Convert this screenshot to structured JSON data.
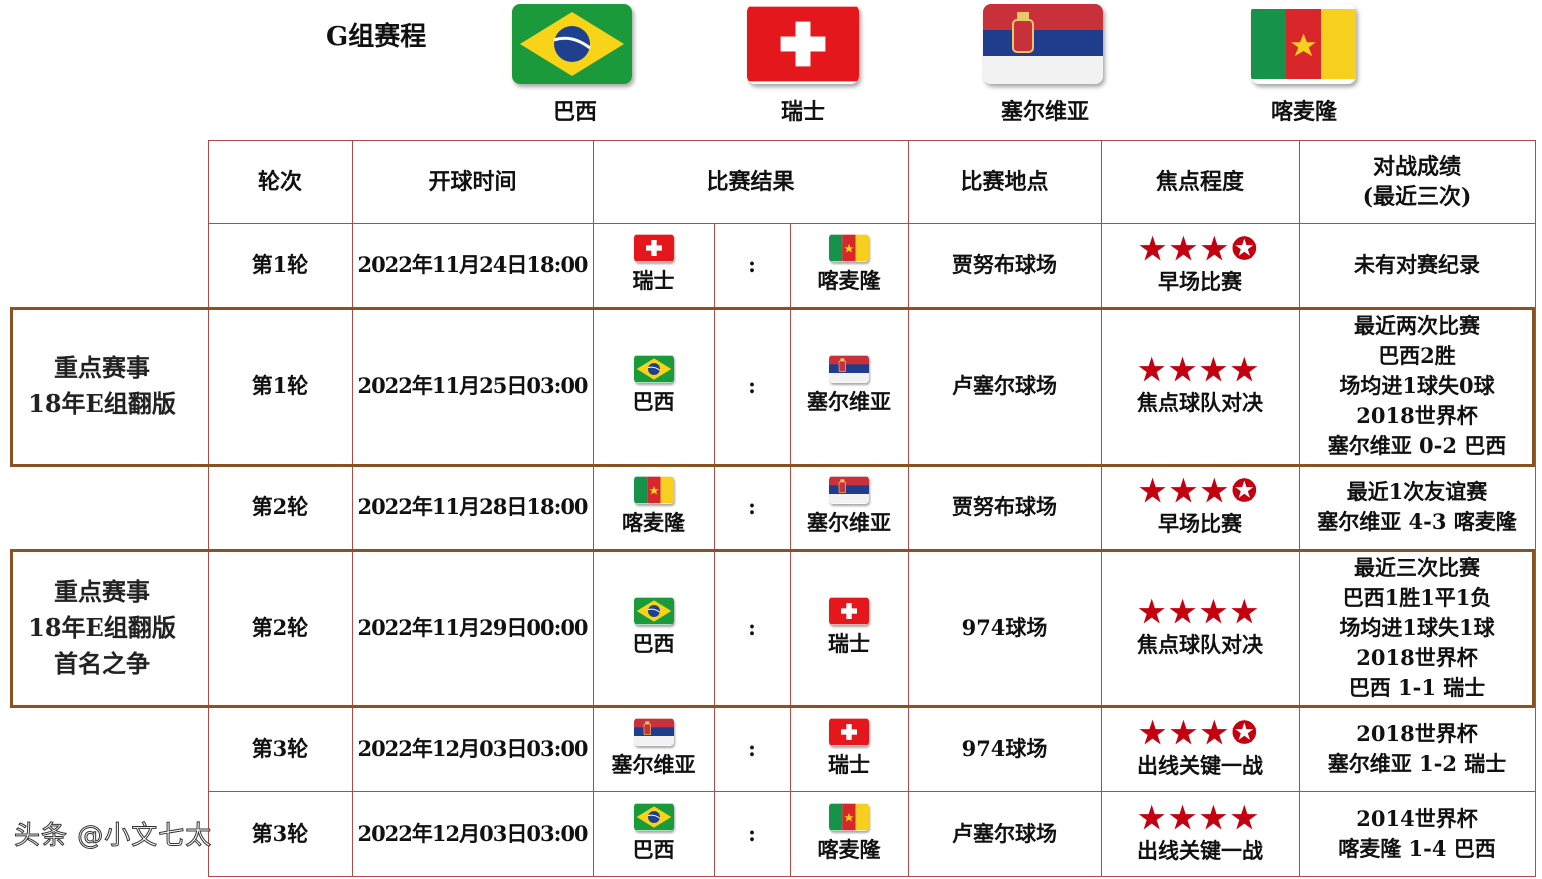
{
  "title": "G组赛程",
  "teams": [
    {
      "name": "巴西",
      "flag": "brazil-flag"
    },
    {
      "name": "瑞士",
      "flag": "switzerland-flag"
    },
    {
      "name": "塞尔维亚",
      "flag": "serbia-flag"
    },
    {
      "name": "喀麦隆",
      "flag": "cameroon-flag"
    }
  ],
  "headers": [
    "轮次",
    "开球时间",
    "比赛结果",
    "比赛地点",
    "焦点程度",
    "对战成绩\n(最近三次)"
  ],
  "colon": ":",
  "rows": [
    {
      "round": "第1轮",
      "time": "2022年11月24日18:00",
      "home": "瑞士",
      "home_flag": "switzerland-flag",
      "away": "喀麦隆",
      "away_flag": "cameroon-flag",
      "venue": "贾努布球场",
      "stars": 3.5,
      "focus": "早场比赛",
      "record": [
        "未有对赛纪录"
      ]
    },
    {
      "round": "第1轮",
      "time": "2022年11月25日03:00",
      "home": "巴西",
      "home_flag": "brazil-flag",
      "away": "塞尔维亚",
      "away_flag": "serbia-flag",
      "venue": "卢塞尔球场",
      "stars": 4,
      "focus": "焦点球队对决",
      "record": [
        "最近两次比赛",
        "巴西2胜",
        "场均进1球失0球",
        "2018世界杯",
        "塞尔维亚 0-2 巴西"
      ]
    },
    {
      "round": "第2轮",
      "time": "2022年11月28日18:00",
      "home": "喀麦隆",
      "home_flag": "cameroon-flag",
      "away": "塞尔维亚",
      "away_flag": "serbia-flag",
      "venue": "贾努布球场",
      "stars": 3.5,
      "focus": "早场比赛",
      "record": [
        "最近1次友谊赛",
        "塞尔维亚 4-3 喀麦隆"
      ]
    },
    {
      "round": "第2轮",
      "time": "2022年11月29日00:00",
      "home": "巴西",
      "home_flag": "brazil-flag",
      "away": "瑞士",
      "away_flag": "switzerland-flag",
      "venue": "974球场",
      "stars": 4,
      "focus": "焦点球队对决",
      "record": [
        "最近三次比赛",
        "巴西1胜1平1负",
        "场均进1球失1球",
        "2018世界杯",
        "巴西 1-1 瑞士"
      ]
    },
    {
      "round": "第3轮",
      "time": "2022年12月03日03:00",
      "home": "塞尔维亚",
      "home_flag": "serbia-flag",
      "away": "瑞士",
      "away_flag": "switzerland-flag",
      "venue": "974球场",
      "stars": 3.5,
      "focus": "出线关键一战",
      "record": [
        "2018世界杯",
        "塞尔维亚 1-2 瑞士"
      ]
    },
    {
      "round": "第3轮",
      "time": "2022年12月03日03:00",
      "home": "巴西",
      "home_flag": "brazil-flag",
      "away": "喀麦隆",
      "away_flag": "cameroon-flag",
      "venue": "卢塞尔球场",
      "stars": 4,
      "focus": "出线关键一战",
      "record": [
        "2014世界杯",
        "喀麦隆 1-4 巴西"
      ]
    }
  ],
  "highlights": [
    {
      "row": 1,
      "label": [
        "重点赛事",
        "18年E组翻版"
      ]
    },
    {
      "row": 3,
      "label": [
        "重点赛事",
        "18年E组翻版",
        "首名之争"
      ]
    }
  ],
  "colors": {
    "star": "#c40010",
    "grid": "#b24a4a",
    "highlight": "#8a5220"
  },
  "watermark": "头条 @小文七太"
}
